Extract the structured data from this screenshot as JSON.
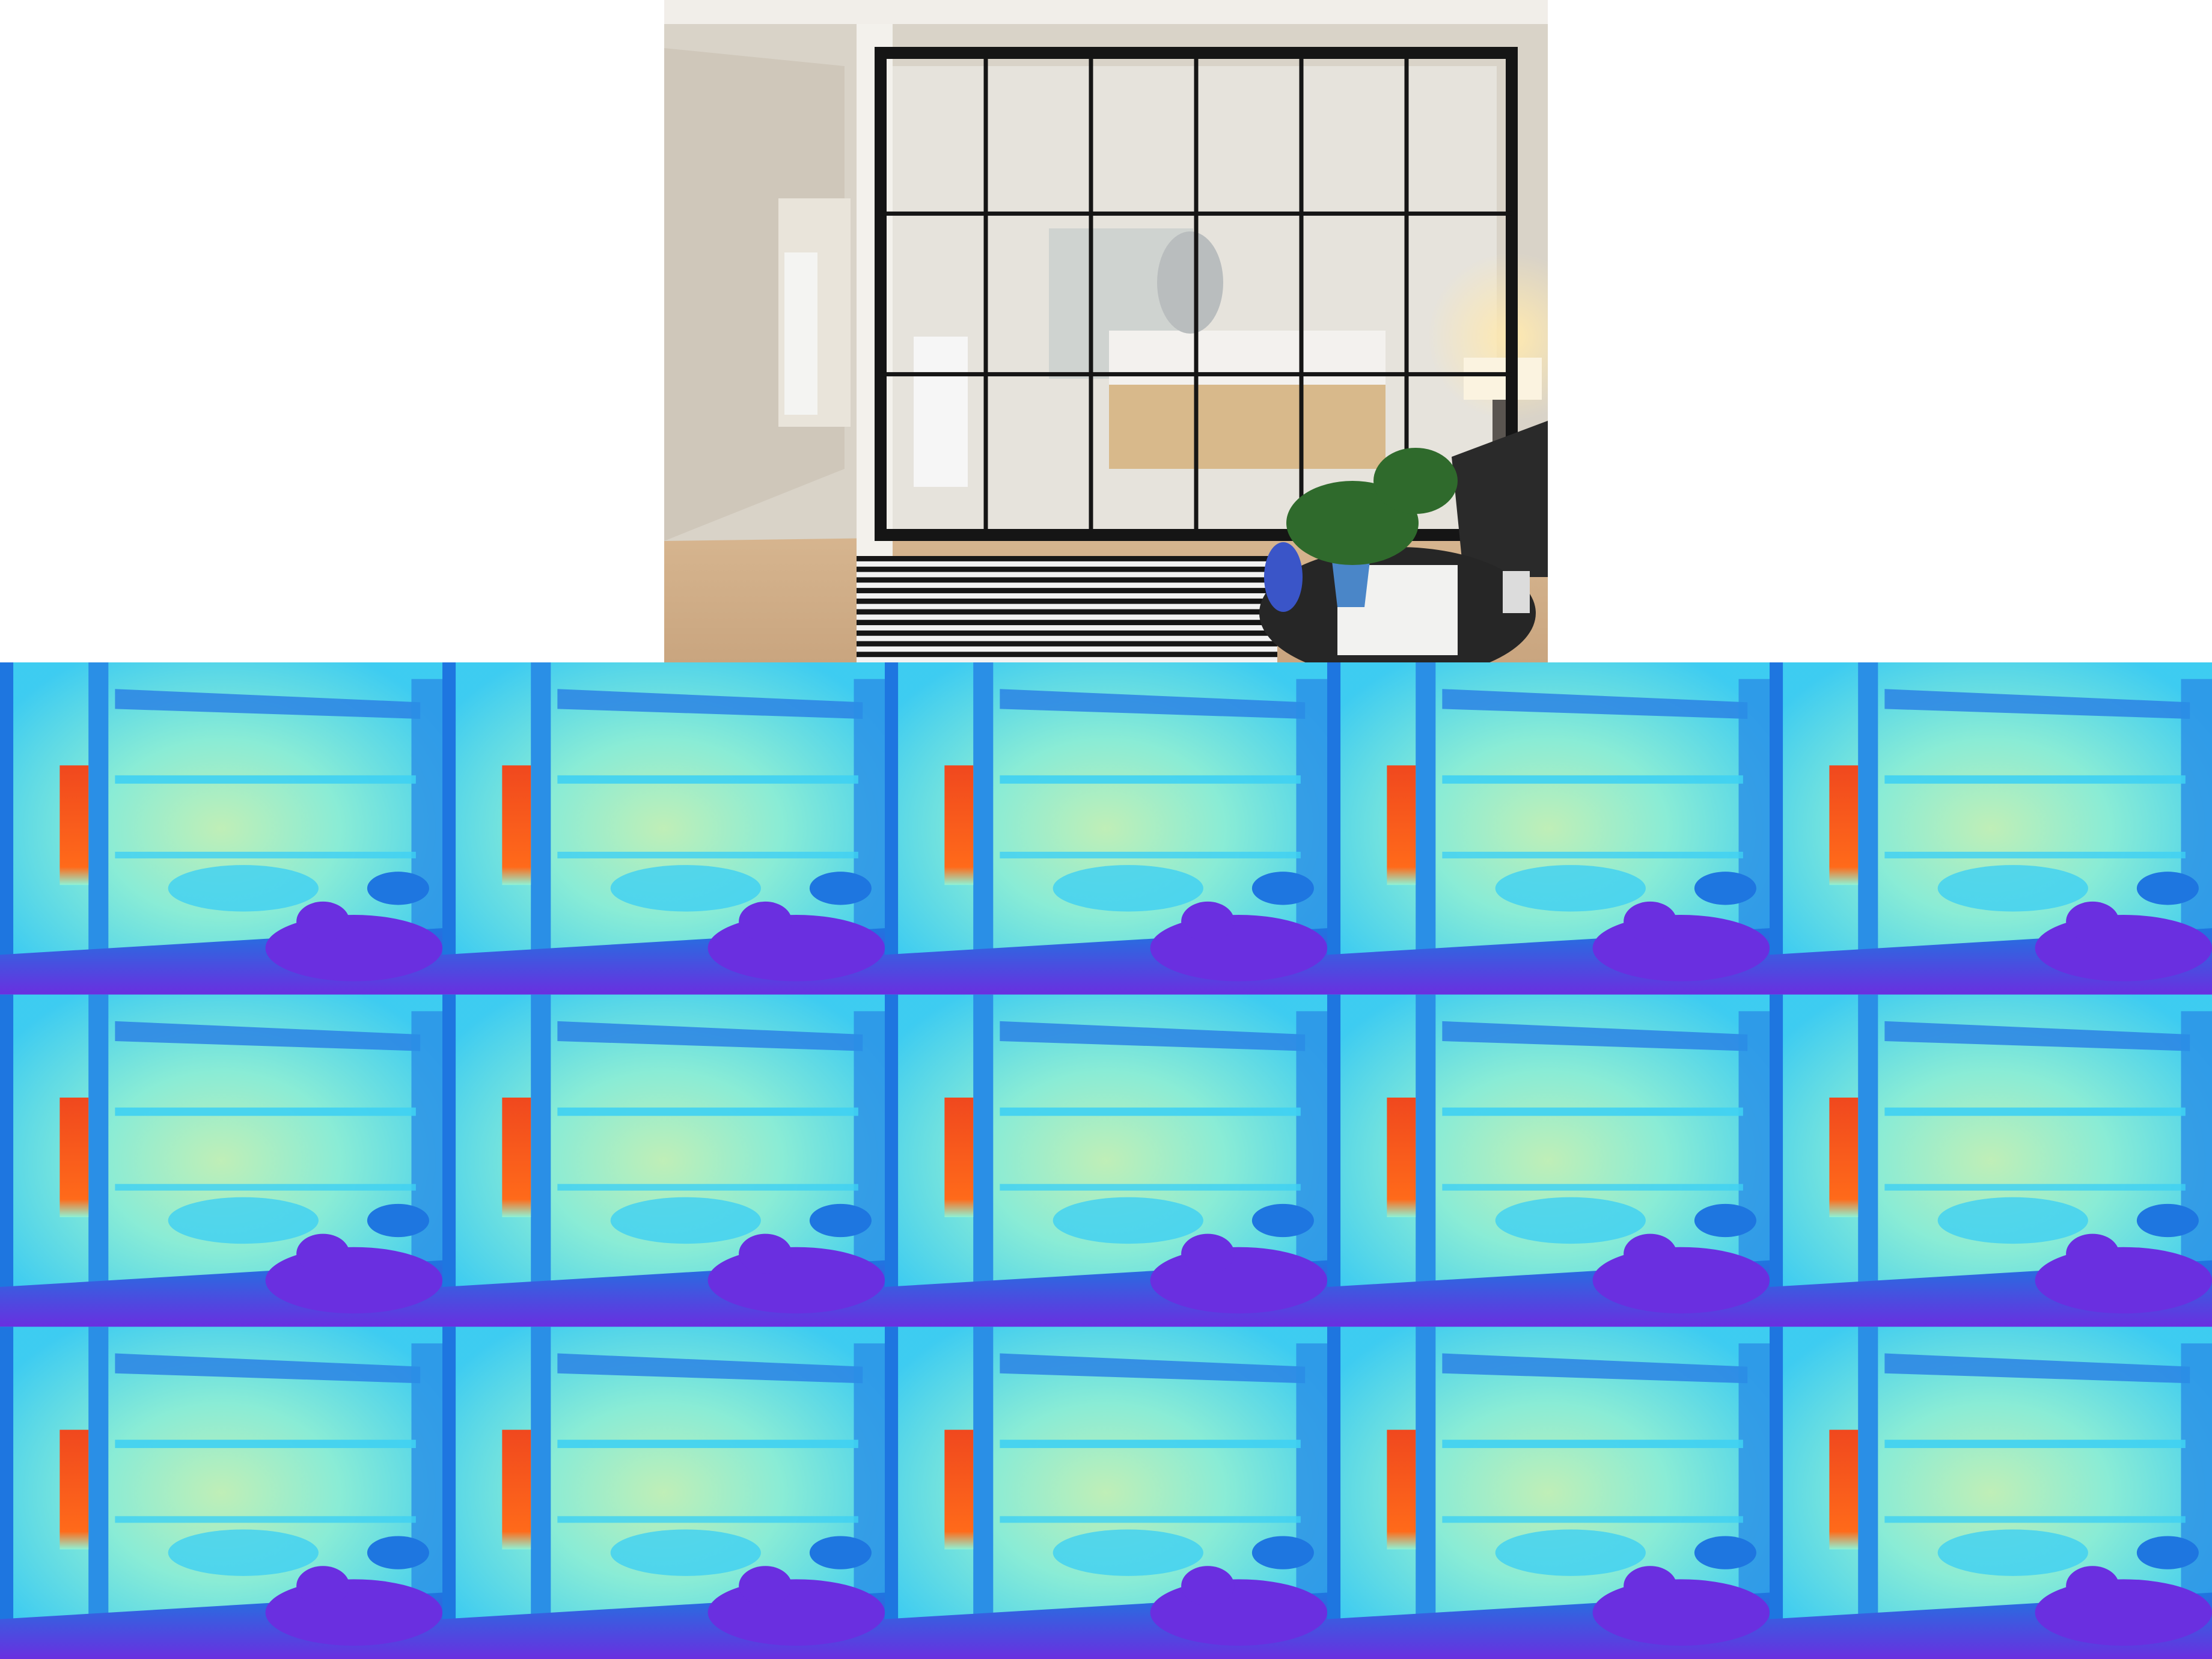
{
  "figure": {
    "photo": {
      "wall_color": "#d9d3c8",
      "floor_color": "#c9a57f",
      "frame_color": "#151515",
      "bedroom_color": "#e6e3dc",
      "lamp_glow_color": "#ffe9b0",
      "rug_dark": "#161616",
      "rug_light": "#f2f2f2",
      "sofa_color": "#2a2a2a",
      "table_color": "#262626",
      "plant_color": "#2f6a2c",
      "vase_color": "#3a55c8",
      "pot_color": "#4a86c8"
    },
    "depth_grid": {
      "rows": 3,
      "cols": 5,
      "palette": {
        "far_wall": "#3fd0f2",
        "center": "#8ff2d5",
        "center_warm": "#c8f5b5",
        "frame": "#2a8fe6",
        "edge": "#1e76e0",
        "floor": "#6a2fe0",
        "door_hot": "#f0481e",
        "door_top": "#ff6a1a",
        "ceiling_beam": "#2c82e4"
      }
    }
  }
}
